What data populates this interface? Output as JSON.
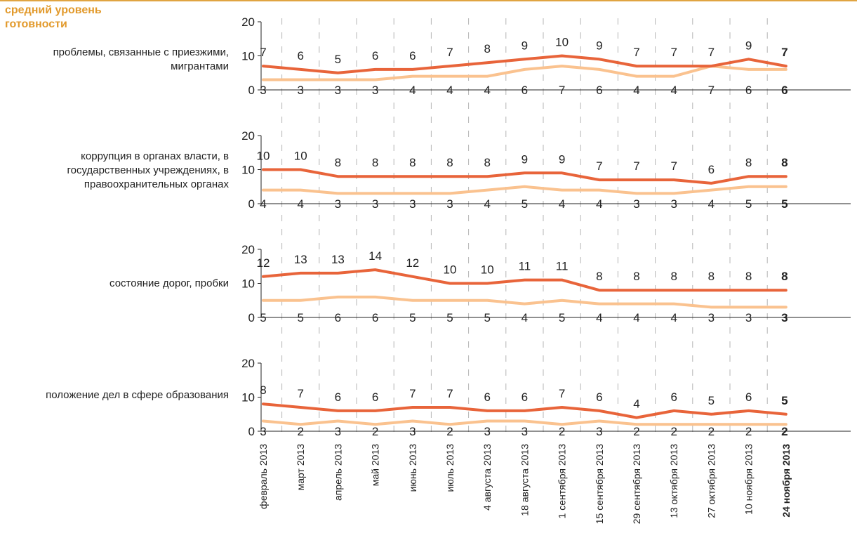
{
  "header": "средний уровень готовности",
  "colors": {
    "series_dark": "#e8643a",
    "series_light": "#fac28f",
    "grid": "#b5b5b5",
    "axis": "#222222"
  },
  "chart_data": {
    "type": "line",
    "x": [
      "февраль 2013",
      "март 2013",
      "апрель 2013",
      "май 2013",
      "июнь 2013",
      "июль 2013",
      "4 августа 2013",
      "18 августа 2013",
      "1 сентября 2013",
      "15 сентября 2013",
      "29 сентября 2013",
      "13 октября 2013",
      "27 октября 2013",
      "10 ноября 2013",
      "24 ноября 2013"
    ],
    "ylim": [
      0,
      20
    ],
    "yticks": [
      0,
      10,
      20
    ],
    "panels": [
      {
        "label": "проблемы, связанные с приезжими, мигрантами",
        "series": [
          {
            "style": "dark",
            "values": [
              7,
              6,
              5,
              6,
              6,
              7,
              8,
              9,
              10,
              9,
              7,
              7,
              7,
              9,
              7
            ]
          },
          {
            "style": "light",
            "values": [
              3,
              3,
              3,
              3,
              4,
              4,
              4,
              6,
              7,
              6,
              4,
              4,
              7,
              6,
              6
            ]
          }
        ]
      },
      {
        "label": "коррупция в органах власти, в государственных учреждениях, в правоохранительных органах",
        "series": [
          {
            "style": "dark",
            "values": [
              10,
              10,
              8,
              8,
              8,
              8,
              8,
              9,
              9,
              7,
              7,
              7,
              6,
              8,
              8
            ]
          },
          {
            "style": "light",
            "values": [
              4,
              4,
              3,
              3,
              3,
              3,
              4,
              5,
              4,
              4,
              3,
              3,
              4,
              5,
              5
            ]
          }
        ]
      },
      {
        "label": "состояние дорог, пробки",
        "series": [
          {
            "style": "dark",
            "values": [
              12,
              13,
              13,
              14,
              12,
              10,
              10,
              11,
              11,
              8,
              8,
              8,
              8,
              8,
              8
            ]
          },
          {
            "style": "light",
            "values": [
              5,
              5,
              6,
              6,
              5,
              5,
              5,
              4,
              5,
              4,
              4,
              4,
              3,
              3,
              3
            ]
          }
        ]
      },
      {
        "label": "положение дел в сфере образования",
        "series": [
          {
            "style": "dark",
            "values": [
              8,
              7,
              6,
              6,
              7,
              7,
              6,
              6,
              7,
              6,
              4,
              6,
              5,
              6,
              5
            ]
          },
          {
            "style": "light",
            "values": [
              3,
              2,
              3,
              2,
              3,
              2,
              3,
              3,
              2,
              3,
              2,
              2,
              2,
              2,
              2
            ]
          }
        ]
      }
    ]
  }
}
